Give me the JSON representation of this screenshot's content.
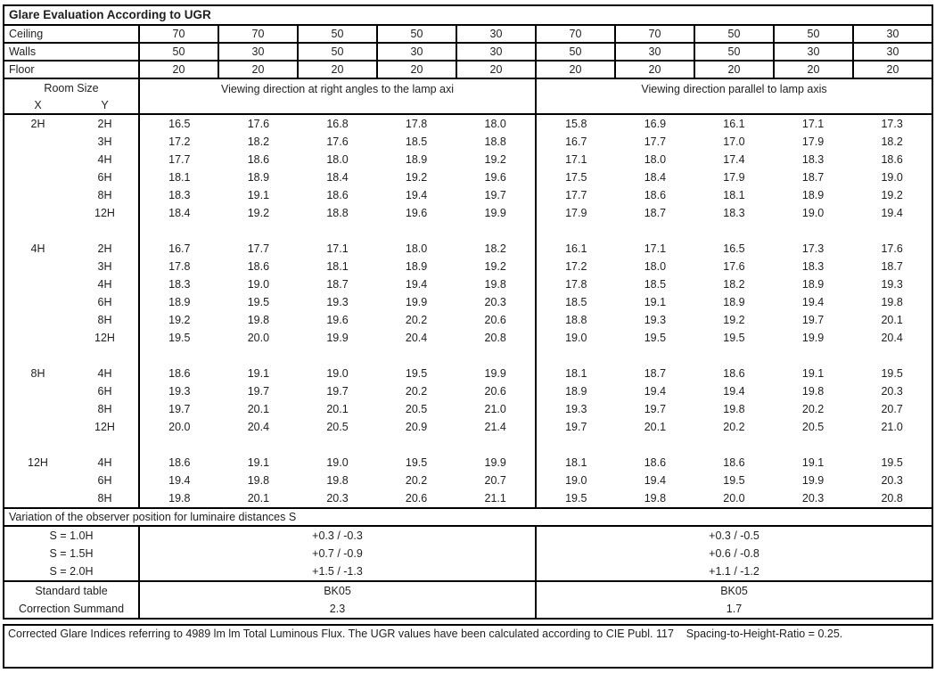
{
  "title": "Glare Evaluation According to UGR",
  "surface_rows": [
    {
      "label": "Ceiling",
      "values": [
        "70",
        "70",
        "50",
        "50",
        "30",
        "70",
        "70",
        "50",
        "50",
        "30"
      ]
    },
    {
      "label": "Walls",
      "values": [
        "50",
        "30",
        "50",
        "30",
        "30",
        "50",
        "30",
        "50",
        "30",
        "30"
      ]
    },
    {
      "label": "Floor",
      "values": [
        "20",
        "20",
        "20",
        "20",
        "20",
        "20",
        "20",
        "20",
        "20",
        "20"
      ]
    }
  ],
  "header": {
    "room_size_label": "Room Size",
    "x_label": "X",
    "y_label": "Y",
    "group1_label": "Viewing direction at right angles to the lamp axi",
    "group2_label": "Viewing direction parallel to lamp axis"
  },
  "data_blocks": [
    {
      "x": "2H",
      "rows": [
        {
          "y": "2H",
          "right_angles": [
            "16.5",
            "17.6",
            "16.8",
            "17.8",
            "18.0"
          ],
          "parallel": [
            "15.8",
            "16.9",
            "16.1",
            "17.1",
            "17.3"
          ]
        },
        {
          "y": "3H",
          "right_angles": [
            "17.2",
            "18.2",
            "17.6",
            "18.5",
            "18.8"
          ],
          "parallel": [
            "16.7",
            "17.7",
            "17.0",
            "17.9",
            "18.2"
          ]
        },
        {
          "y": "4H",
          "right_angles": [
            "17.7",
            "18.6",
            "18.0",
            "18.9",
            "19.2"
          ],
          "parallel": [
            "17.1",
            "18.0",
            "17.4",
            "18.3",
            "18.6"
          ]
        },
        {
          "y": "6H",
          "right_angles": [
            "18.1",
            "18.9",
            "18.4",
            "19.2",
            "19.6"
          ],
          "parallel": [
            "17.5",
            "18.4",
            "17.9",
            "18.7",
            "19.0"
          ]
        },
        {
          "y": "8H",
          "right_angles": [
            "18.3",
            "19.1",
            "18.6",
            "19.4",
            "19.7"
          ],
          "parallel": [
            "17.7",
            "18.6",
            "18.1",
            "18.9",
            "19.2"
          ]
        },
        {
          "y": "12H",
          "right_angles": [
            "18.4",
            "19.2",
            "18.8",
            "19.6",
            "19.9"
          ],
          "parallel": [
            "17.9",
            "18.7",
            "18.3",
            "19.0",
            "19.4"
          ]
        }
      ]
    },
    {
      "x": "4H",
      "rows": [
        {
          "y": "2H",
          "right_angles": [
            "16.7",
            "17.7",
            "17.1",
            "18.0",
            "18.2"
          ],
          "parallel": [
            "16.1",
            "17.1",
            "16.5",
            "17.3",
            "17.6"
          ]
        },
        {
          "y": "3H",
          "right_angles": [
            "17.8",
            "18.6",
            "18.1",
            "18.9",
            "19.2"
          ],
          "parallel": [
            "17.2",
            "18.0",
            "17.6",
            "18.3",
            "18.7"
          ]
        },
        {
          "y": "4H",
          "right_angles": [
            "18.3",
            "19.0",
            "18.7",
            "19.4",
            "19.8"
          ],
          "parallel": [
            "17.8",
            "18.5",
            "18.2",
            "18.9",
            "19.3"
          ]
        },
        {
          "y": "6H",
          "right_angles": [
            "18.9",
            "19.5",
            "19.3",
            "19.9",
            "20.3"
          ],
          "parallel": [
            "18.5",
            "19.1",
            "18.9",
            "19.4",
            "19.8"
          ]
        },
        {
          "y": "8H",
          "right_angles": [
            "19.2",
            "19.8",
            "19.6",
            "20.2",
            "20.6"
          ],
          "parallel": [
            "18.8",
            "19.3",
            "19.2",
            "19.7",
            "20.1"
          ]
        },
        {
          "y": "12H",
          "right_angles": [
            "19.5",
            "20.0",
            "19.9",
            "20.4",
            "20.8"
          ],
          "parallel": [
            "19.0",
            "19.5",
            "19.5",
            "19.9",
            "20.4"
          ]
        }
      ]
    },
    {
      "x": "8H",
      "rows": [
        {
          "y": "4H",
          "right_angles": [
            "18.6",
            "19.1",
            "19.0",
            "19.5",
            "19.9"
          ],
          "parallel": [
            "18.1",
            "18.7",
            "18.6",
            "19.1",
            "19.5"
          ]
        },
        {
          "y": "6H",
          "right_angles": [
            "19.3",
            "19.7",
            "19.7",
            "20.2",
            "20.6"
          ],
          "parallel": [
            "18.9",
            "19.4",
            "19.4",
            "19.8",
            "20.3"
          ]
        },
        {
          "y": "8H",
          "right_angles": [
            "19.7",
            "20.1",
            "20.1",
            "20.5",
            "21.0"
          ],
          "parallel": [
            "19.3",
            "19.7",
            "19.8",
            "20.2",
            "20.7"
          ]
        },
        {
          "y": "12H",
          "right_angles": [
            "20.0",
            "20.4",
            "20.5",
            "20.9",
            "21.4"
          ],
          "parallel": [
            "19.7",
            "20.1",
            "20.2",
            "20.5",
            "21.0"
          ]
        }
      ]
    },
    {
      "x": "12H",
      "rows": [
        {
          "y": "4H",
          "right_angles": [
            "18.6",
            "19.1",
            "19.0",
            "19.5",
            "19.9"
          ],
          "parallel": [
            "18.1",
            "18.6",
            "18.6",
            "19.1",
            "19.5"
          ]
        },
        {
          "y": "6H",
          "right_angles": [
            "19.4",
            "19.8",
            "19.8",
            "20.2",
            "20.7"
          ],
          "parallel": [
            "19.0",
            "19.4",
            "19.5",
            "19.9",
            "20.3"
          ]
        },
        {
          "y": "8H",
          "right_angles": [
            "19.8",
            "20.1",
            "20.3",
            "20.6",
            "21.1"
          ],
          "parallel": [
            "19.5",
            "19.8",
            "20.0",
            "20.3",
            "20.8"
          ]
        }
      ]
    }
  ],
  "variation_label": "Variation of the observer position for luminaire distances S",
  "variation_rows": [
    {
      "label": "S = 1.0H",
      "right_angles": "+0.3 / -0.3",
      "parallel": "+0.3 / -0.5"
    },
    {
      "label": "S = 1.5H",
      "right_angles": "+0.7 / -0.9",
      "parallel": "+0.6 / -0.8"
    },
    {
      "label": "S = 2.0H",
      "right_angles": "+1.5 / -1.3",
      "parallel": "+1.1 / -1.2"
    }
  ],
  "summary_rows": [
    {
      "label": "Standard table",
      "right_angles": "BK05",
      "parallel": "BK05"
    },
    {
      "label": "Correction Summand",
      "right_angles": "2.3",
      "parallel": "1.7"
    }
  ],
  "footer": "Corrected Glare Indices referring to 4989 lm lm Total Luminous Flux. The UGR values have been calculated according to CIE Publ. 117    Spacing-to-Height-Ratio = 0.25."
}
